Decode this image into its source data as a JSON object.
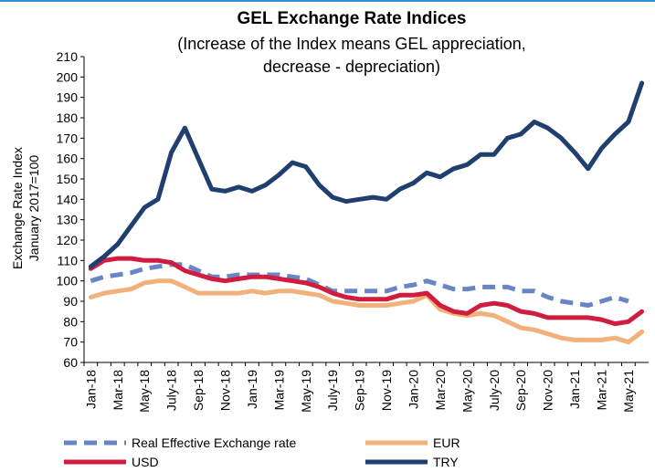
{
  "chart_data": {
    "type": "line",
    "title": "GEL  Exchange Rate Indices",
    "subtitle": [
      "(Increase of the Index means GEL appreciation,",
      "decrease - depreciation)"
    ],
    "y_label": [
      "Exchange Rate Index",
      "January 2017=100"
    ],
    "categories": [
      "Jan-18",
      null,
      "Mar-18",
      null,
      "May-18",
      null,
      "July-18",
      null,
      "Sep-18",
      null,
      "Nov-18",
      null,
      "Jan-19",
      null,
      "Mar-19",
      null,
      "May-19",
      null,
      "July-19",
      null,
      "Sep-19",
      null,
      "Nov-19",
      null,
      "Jan-20",
      null,
      "Mar-20",
      null,
      "May-20",
      null,
      "July-20",
      null,
      "Sep-20",
      null,
      "Nov-20",
      null,
      "Jan-21",
      null,
      "Mar-21",
      null,
      "May-21",
      null
    ],
    "ylim": [
      60,
      210
    ],
    "yticks": [
      60,
      70,
      80,
      90,
      100,
      110,
      120,
      130,
      140,
      150,
      160,
      170,
      180,
      190,
      200,
      210
    ],
    "legend": "bottom",
    "series": [
      {
        "name": "Real Effective Exchange rate",
        "color": "#6a85c6",
        "dashed": true,
        "values": [
          100,
          102,
          103,
          104,
          106,
          107,
          108,
          108,
          105,
          102,
          102,
          103,
          103,
          103,
          103,
          102,
          101,
          98,
          95,
          95,
          95,
          95,
          95,
          97,
          98,
          100,
          98,
          96,
          96,
          97,
          97,
          97,
          95,
          95,
          92,
          90,
          89,
          88,
          90,
          92,
          90,
          null
        ]
      },
      {
        "name": "EUR",
        "color": "#f0b27a",
        "values": [
          92,
          94,
          95,
          96,
          99,
          100,
          100,
          97,
          94,
          94,
          94,
          94,
          95,
          94,
          95,
          95,
          94,
          93,
          90,
          89,
          88,
          88,
          88,
          89,
          90,
          93,
          86,
          84,
          83,
          84,
          83,
          80,
          77,
          76,
          74,
          72,
          71,
          71,
          71,
          72,
          70,
          75
        ]
      },
      {
        "name": "USD",
        "color": "#d01c3f",
        "values": [
          106,
          110,
          111,
          111,
          110,
          110,
          109,
          105,
          103,
          101,
          100,
          101,
          102,
          102,
          101,
          100,
          99,
          97,
          94,
          92,
          91,
          91,
          91,
          93,
          93,
          94,
          88,
          85,
          84,
          88,
          89,
          88,
          85,
          84,
          82,
          82,
          82,
          82,
          81,
          79,
          80,
          85
        ]
      },
      {
        "name": "TRY",
        "color": "#1f3f6e",
        "values": [
          107,
          112,
          118,
          127,
          136,
          140,
          163,
          175,
          160,
          145,
          144,
          146,
          144,
          147,
          152,
          158,
          156,
          147,
          141,
          139,
          140,
          141,
          140,
          145,
          148,
          153,
          151,
          155,
          157,
          162,
          162,
          170,
          172,
          178,
          175,
          170,
          163,
          155,
          165,
          172,
          178,
          197
        ]
      }
    ]
  }
}
